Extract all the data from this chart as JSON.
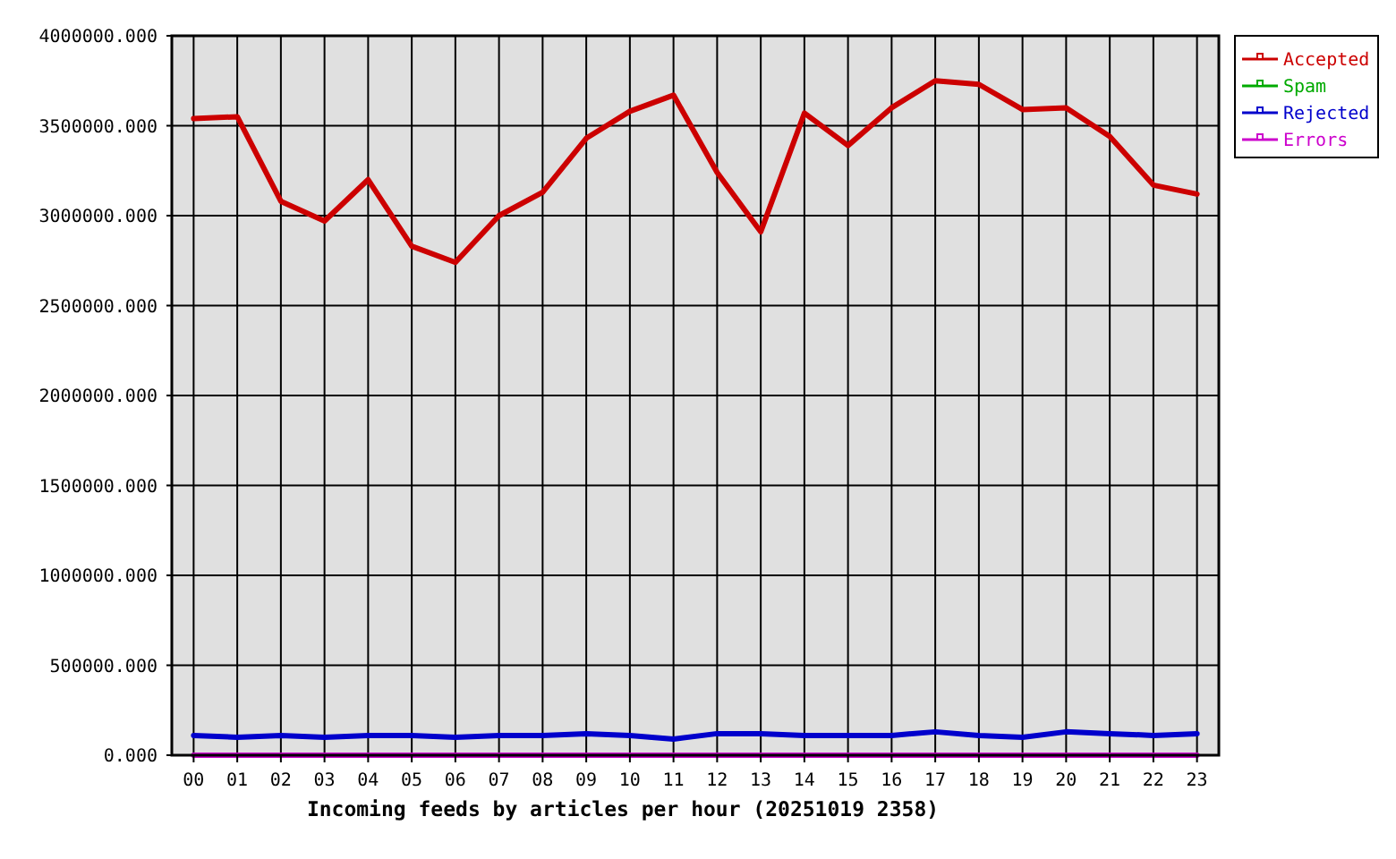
{
  "chart_data": {
    "type": "line",
    "xlabel": "Incoming feeds by articles per hour (20251019 2358)",
    "categories": [
      "00",
      "01",
      "02",
      "03",
      "04",
      "05",
      "06",
      "07",
      "08",
      "09",
      "10",
      "11",
      "12",
      "13",
      "14",
      "15",
      "16",
      "17",
      "18",
      "19",
      "20",
      "21",
      "22",
      "23"
    ],
    "series": [
      {
        "name": "Accepted",
        "color": "#cc0000",
        "values": [
          3540000,
          3550000,
          3080000,
          2970000,
          3200000,
          2830000,
          2740000,
          3000000,
          3130000,
          3430000,
          3580000,
          3670000,
          3240000,
          2910000,
          3570000,
          3390000,
          3600000,
          3750000,
          3730000,
          3590000,
          3600000,
          3440000,
          3170000,
          3120000
        ]
      },
      {
        "name": "Spam",
        "color": "#00aa00",
        "values": [
          null,
          null,
          null,
          null,
          null,
          null,
          null,
          null,
          null,
          null,
          null,
          null,
          null,
          null,
          null,
          null,
          null,
          null,
          null,
          null,
          null,
          null,
          null,
          null
        ]
      },
      {
        "name": "Rejected",
        "color": "#0000cc",
        "values": [
          110000,
          100000,
          110000,
          100000,
          110000,
          110000,
          100000,
          110000,
          110000,
          120000,
          110000,
          90000,
          120000,
          120000,
          110000,
          110000,
          110000,
          130000,
          110000,
          100000,
          130000,
          120000,
          110000,
          120000
        ]
      },
      {
        "name": "Errors",
        "color": "#cc00cc",
        "values": [
          0,
          0,
          0,
          0,
          0,
          0,
          0,
          0,
          0,
          0,
          0,
          0,
          0,
          0,
          0,
          0,
          0,
          0,
          0,
          0,
          0,
          0,
          0,
          0
        ]
      }
    ],
    "ylim": [
      0,
      4000000
    ],
    "yticks": [
      {
        "value": 0,
        "label": "0.000"
      },
      {
        "value": 500000,
        "label": "500000.000"
      },
      {
        "value": 1000000,
        "label": "1000000.000"
      },
      {
        "value": 1500000,
        "label": "1500000.000"
      },
      {
        "value": 2000000,
        "label": "2000000.000"
      },
      {
        "value": 2500000,
        "label": "2500000.000"
      },
      {
        "value": 3000000,
        "label": "3000000.000"
      },
      {
        "value": 3500000,
        "label": "3500000.000"
      },
      {
        "value": 4000000,
        "label": "4000000.000"
      }
    ],
    "grid": true,
    "legend": "top right"
  }
}
